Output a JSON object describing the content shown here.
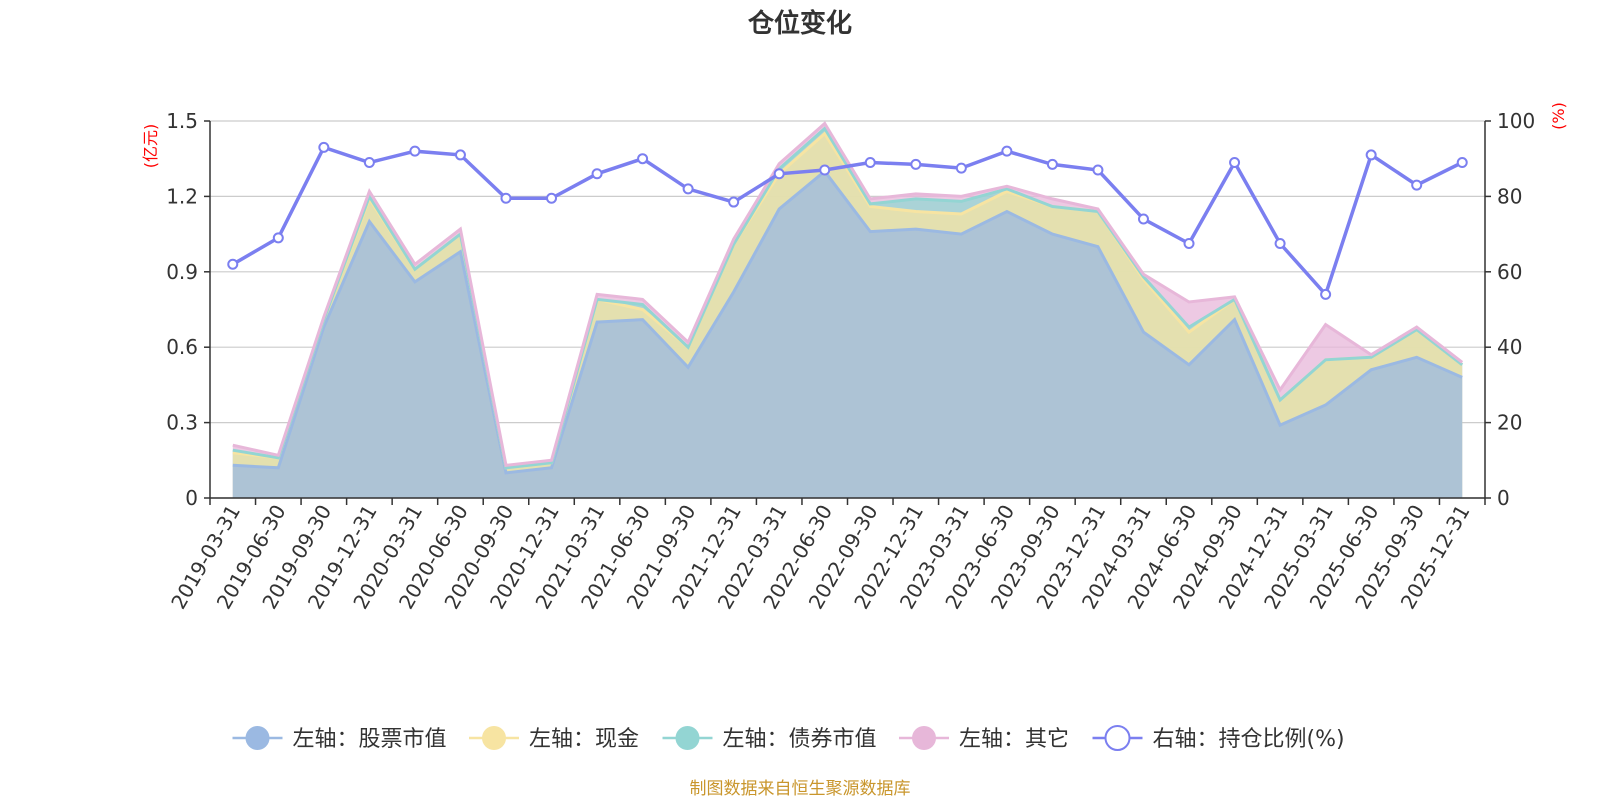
{
  "chart_data": {
    "type": "area",
    "title": "仓位变化",
    "left_axis_unit": "(亿元)",
    "right_axis_unit": "(%)",
    "left_ylim": [
      0,
      1.5
    ],
    "left_ticks": [
      "0",
      "0.3",
      "0.6",
      "0.9",
      "1.2",
      "1.5"
    ],
    "right_ylim": [
      0,
      100
    ],
    "right_ticks": [
      "0",
      "20",
      "40",
      "60",
      "80",
      "100"
    ],
    "grid": true,
    "legend_position": "bottom",
    "source_note": "制图数据来自恒生聚源数据库",
    "x": [
      "2019-03-31",
      "2019-06-30",
      "2019-09-30",
      "2019-12-31",
      "2020-03-31",
      "2020-06-30",
      "2020-09-30",
      "2020-12-31",
      "2021-03-31",
      "2021-06-30",
      "2021-09-30",
      "2021-12-31",
      "2022-03-31",
      "2022-06-30",
      "2022-09-30",
      "2022-12-31",
      "2023-03-31",
      "2023-06-30",
      "2023-09-30",
      "2023-12-31",
      "2024-03-31",
      "2024-06-30",
      "2024-09-30",
      "2024-12-31",
      "2025-03-31",
      "2025-06-30",
      "2025-09-30",
      "2025-12-31"
    ],
    "series": [
      {
        "name": "左轴：股票市值",
        "axis": "left",
        "kind": "stacked-area",
        "color": "#9bb9e2",
        "values": [
          0.13,
          0.12,
          0.68,
          1.1,
          0.86,
          0.98,
          0.1,
          0.12,
          0.7,
          0.71,
          0.52,
          0.82,
          1.15,
          1.3,
          1.06,
          1.07,
          1.05,
          1.14,
          1.05,
          1.0,
          0.66,
          0.53,
          0.71,
          0.29,
          0.37,
          0.51,
          0.56,
          0.48
        ]
      },
      {
        "name": "左轴：现金",
        "axis": "left",
        "kind": "stacked-area",
        "color": "#f7e4a2",
        "values": [
          0.05,
          0.04,
          0.03,
          0.09,
          0.05,
          0.07,
          0.02,
          0.02,
          0.09,
          0.04,
          0.08,
          0.19,
          0.14,
          0.15,
          0.1,
          0.07,
          0.08,
          0.08,
          0.11,
          0.14,
          0.21,
          0.13,
          0.08,
          0.1,
          0.18,
          0.05,
          0.11,
          0.05
        ]
      },
      {
        "name": "左轴：债券市值",
        "axis": "left",
        "kind": "stacked-area",
        "color": "#93d5d3",
        "values": [
          0.01,
          0,
          0,
          0.01,
          0,
          0,
          0,
          0,
          0,
          0.02,
          0,
          0,
          0.02,
          0.02,
          0.01,
          0.05,
          0.05,
          0.01,
          0,
          0,
          0.01,
          0.02,
          0,
          0,
          0,
          0,
          0,
          0
        ]
      },
      {
        "name": "左轴：其它",
        "axis": "left",
        "kind": "stacked-area",
        "color": "#e7b7d9",
        "values": [
          0.02,
          0.01,
          0.01,
          0.02,
          0.02,
          0.02,
          0.01,
          0.01,
          0.02,
          0.02,
          0.02,
          0.02,
          0.02,
          0.02,
          0.02,
          0.02,
          0.02,
          0.01,
          0.03,
          0.01,
          0.01,
          0.1,
          0.01,
          0.04,
          0.14,
          0.01,
          0.01,
          0.01
        ]
      },
      {
        "name": "右轴：持仓比例(%)",
        "axis": "right",
        "kind": "line",
        "color": "#7b7ff0",
        "values": [
          62,
          69,
          93,
          89,
          92,
          91,
          79.5,
          79.5,
          86,
          90,
          82,
          78.5,
          86,
          87,
          89,
          88.5,
          87.5,
          92,
          88.5,
          87,
          74,
          67.5,
          89,
          67.5,
          54,
          91,
          83,
          89
        ]
      }
    ]
  }
}
